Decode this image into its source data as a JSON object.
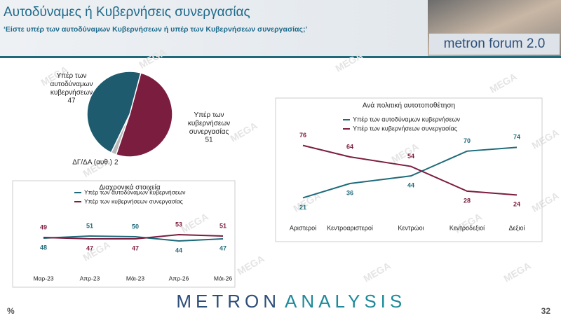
{
  "header": {
    "title": "Αυτοδύναμες ή Κυβερνήσεις συνεργασίας",
    "subtitle": "‘Είστε υπέρ των αυτοδύναμων Κυβερνήσεων ή υπέρ των Κυβερνήσεων συνεργασίας;’",
    "logo": "metron forum 2.0"
  },
  "watermark": "MEGA",
  "footer": {
    "brand_left": "METRON",
    "brand_right": "ANALYSIS",
    "unit": "%",
    "page": "32"
  },
  "chart_data": [
    {
      "type": "pie",
      "categories": [
        "Υπέρ των αυτοδύναμων κυβερνήσεων",
        "Υπέρ των κυβερνήσεων συνεργασίας",
        "ΔΓ/ΔΑ (αυθ.)"
      ],
      "values": [
        47,
        51,
        2
      ],
      "colors": [
        "#1e5b6e",
        "#7b1d3f",
        "#b7b7b7"
      ]
    },
    {
      "type": "line",
      "title": "Διαχρονικά στοιχεία",
      "categories": [
        "Μαρ-23",
        "Απρ-23",
        "Μάι-23",
        "Απρ-26",
        "Μάι-26"
      ],
      "ylim": [
        0,
        100
      ],
      "series": [
        {
          "name": "Υπέρ των αυτοδύναμων κυβερνήσεων",
          "color": "#1e6a7a",
          "values": [
            48,
            51,
            50,
            44,
            47
          ]
        },
        {
          "name": "Υπέρ των κυβερνήσεων συνεργασίας",
          "color": "#7b1d3f",
          "values": [
            49,
            47,
            47,
            53,
            51
          ]
        }
      ]
    },
    {
      "type": "line",
      "title": "Ανά πολιτική αυτοτοποθέτηση",
      "categories": [
        "Αριστεροί",
        "Κεντροαριστεροί",
        "Κεντρώοι",
        "Κεντροδεξιοί",
        "Δεξιοί"
      ],
      "ylim": [
        0,
        100
      ],
      "series": [
        {
          "name": "Υπέρ των αυτοδύναμων κυβερνήσεων",
          "color": "#1e6a7a",
          "values": [
            21,
            36,
            44,
            70,
            74
          ]
        },
        {
          "name": "Υπέρ των κυβερνήσεων συνεργασίας",
          "color": "#7b1d3f",
          "values": [
            76,
            64,
            54,
            28,
            24
          ]
        }
      ]
    }
  ]
}
